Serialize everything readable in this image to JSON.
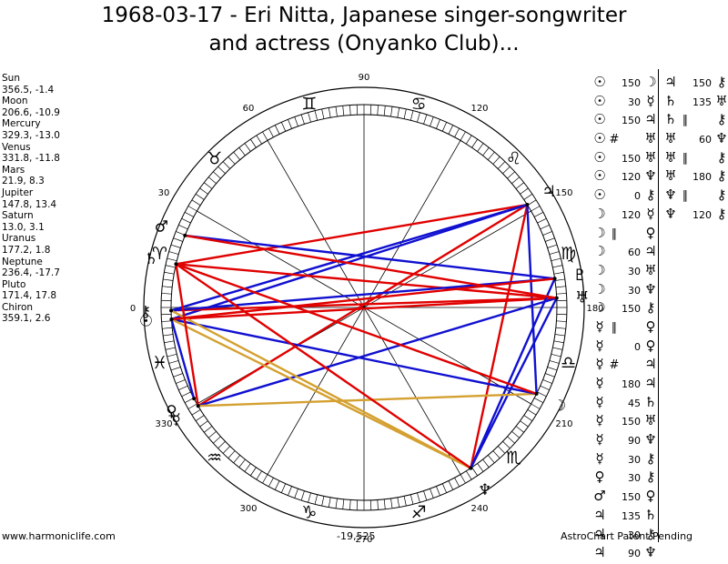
{
  "title": "1968-03-17 - Eri Nitta, Japanese singer-songwriter and actress (Onyanko Club)...",
  "planets": [
    {
      "name": "Sun",
      "coords": "356.5, -1.4",
      "lon": 356.5,
      "glyph": "☉"
    },
    {
      "name": "Moon",
      "coords": "206.6, -10.9",
      "lon": 206.6,
      "glyph": "☽"
    },
    {
      "name": "Mercury",
      "coords": "329.3, -13.0",
      "lon": 329.3,
      "glyph": "☿"
    },
    {
      "name": "Venus",
      "coords": "331.8, -11.8",
      "lon": 331.8,
      "glyph": "♀"
    },
    {
      "name": "Mars",
      "coords": "21.9, 8.3",
      "lon": 21.9,
      "glyph": "♂"
    },
    {
      "name": "Jupiter",
      "coords": "147.8, 13.4",
      "lon": 147.8,
      "glyph": "♃"
    },
    {
      "name": "Saturn",
      "coords": "13.0, 3.1",
      "lon": 13.0,
      "glyph": "♄"
    },
    {
      "name": "Uranus",
      "coords": "177.2, 1.8",
      "lon": 177.2,
      "glyph": "♅"
    },
    {
      "name": "Neptune",
      "coords": "236.4, -17.7",
      "lon": 236.4,
      "glyph": "♆"
    },
    {
      "name": "Pluto",
      "coords": "171.4, 17.8",
      "lon": 171.4,
      "glyph": "♇"
    },
    {
      "name": "Chiron",
      "coords": "359.1, 2.6",
      "lon": 359.1,
      "glyph": "⚷"
    }
  ],
  "wheel": {
    "degree_labels": [
      "90",
      "120",
      "150",
      "180",
      "210",
      "240",
      "270",
      "300",
      "330",
      "0",
      "30",
      "60"
    ],
    "degree_values": [
      90,
      120,
      150,
      180,
      210,
      240,
      270,
      300,
      330,
      0,
      30,
      60
    ],
    "signs": [
      "♈",
      "♉",
      "♊",
      "♋",
      "♌",
      "♍",
      "♎",
      "♏",
      "♐",
      "♑",
      "♒",
      "♓"
    ],
    "colors": {
      "hard": "#e00000",
      "soft": "#1010d0",
      "minor": "#d4a030"
    }
  },
  "aspect_lines": [
    {
      "from": "Jupiter",
      "to": "Mercury",
      "color": "hard"
    },
    {
      "from": "Jupiter",
      "to": "Neptune",
      "color": "hard"
    },
    {
      "from": "Jupiter",
      "to": "Moon",
      "color": "soft"
    },
    {
      "from": "Jupiter",
      "to": "Saturn",
      "color": "hard"
    },
    {
      "from": "Jupiter",
      "to": "Sun",
      "color": "soft"
    },
    {
      "from": "Jupiter",
      "to": "Chiron",
      "color": "soft"
    },
    {
      "from": "Uranus",
      "to": "Sun",
      "color": "hard"
    },
    {
      "from": "Uranus",
      "to": "Chiron",
      "color": "hard"
    },
    {
      "from": "Uranus",
      "to": "Neptune",
      "color": "soft"
    },
    {
      "from": "Uranus",
      "to": "Mercury",
      "color": "soft"
    },
    {
      "from": "Uranus",
      "to": "Saturn",
      "color": "hard"
    },
    {
      "from": "Pluto",
      "to": "Mars",
      "color": "soft"
    },
    {
      "from": "Pluto",
      "to": "Chiron",
      "color": "soft"
    },
    {
      "from": "Pluto",
      "to": "Neptune",
      "color": "soft"
    },
    {
      "from": "Moon",
      "to": "Mercury",
      "color": "minor"
    },
    {
      "from": "Moon",
      "to": "Sun",
      "color": "soft"
    },
    {
      "from": "Moon",
      "to": "Saturn",
      "color": "hard"
    },
    {
      "from": "Neptune",
      "to": "Sun",
      "color": "minor"
    },
    {
      "from": "Neptune",
      "to": "Chiron",
      "color": "minor"
    },
    {
      "from": "Neptune",
      "to": "Saturn",
      "color": "hard"
    },
    {
      "from": "Mercury",
      "to": "Saturn",
      "color": "hard"
    },
    {
      "from": "Sun",
      "to": "Pluto",
      "color": "hard"
    },
    {
      "from": "Mars",
      "to": "Uranus",
      "color": "hard"
    },
    {
      "from": "Venus",
      "to": "Sun",
      "color": "soft"
    }
  ],
  "aspects_col1": [
    {
      "p1": "☉",
      "asp": "",
      "val": "150",
      "p2": "☽"
    },
    {
      "p1": "☉",
      "asp": "",
      "val": "30",
      "p2": "☿"
    },
    {
      "p1": "☉",
      "asp": "",
      "val": "150",
      "p2": "♃"
    },
    {
      "p1": "☉",
      "asp": "#",
      "val": "",
      "p2": "♅"
    },
    {
      "p1": "☉",
      "asp": "",
      "val": "150",
      "p2": "♅"
    },
    {
      "p1": "☉",
      "asp": "",
      "val": "120",
      "p2": "♆"
    },
    {
      "p1": "☉",
      "asp": "",
      "val": "0",
      "p2": "⚷"
    },
    {
      "p1": "☽",
      "asp": "",
      "val": "120",
      "p2": "☿"
    },
    {
      "p1": "☽",
      "asp": "∥",
      "val": "",
      "p2": "♀"
    },
    {
      "p1": "☽",
      "asp": "",
      "val": "60",
      "p2": "♃"
    },
    {
      "p1": "☽",
      "asp": "",
      "val": "30",
      "p2": "♅"
    },
    {
      "p1": "☽",
      "asp": "",
      "val": "30",
      "p2": "♆"
    },
    {
      "p1": "☽",
      "asp": "",
      "val": "150",
      "p2": "⚷"
    },
    {
      "p1": "☿",
      "asp": "∥",
      "val": "",
      "p2": "♀"
    },
    {
      "p1": "☿",
      "asp": "",
      "val": "0",
      "p2": "♀"
    },
    {
      "p1": "☿",
      "asp": "#",
      "val": "",
      "p2": "♃"
    },
    {
      "p1": "☿",
      "asp": "",
      "val": "180",
      "p2": "♃"
    },
    {
      "p1": "☿",
      "asp": "",
      "val": "45",
      "p2": "♄"
    },
    {
      "p1": "☿",
      "asp": "",
      "val": "150",
      "p2": "♅"
    },
    {
      "p1": "☿",
      "asp": "",
      "val": "90",
      "p2": "♆"
    },
    {
      "p1": "☿",
      "asp": "",
      "val": "30",
      "p2": "⚷"
    },
    {
      "p1": "♀",
      "asp": "",
      "val": "30",
      "p2": "⚷"
    },
    {
      "p1": "♂",
      "asp": "",
      "val": "150",
      "p2": "♀"
    },
    {
      "p1": "♃",
      "asp": "",
      "val": "135",
      "p2": "♄"
    },
    {
      "p1": "♃",
      "asp": "",
      "val": "30",
      "p2": "⚷"
    },
    {
      "p1": "♃",
      "asp": "",
      "val": "90",
      "p2": "♆"
    }
  ],
  "aspects_col2": [
    {
      "p1": "♃",
      "asp": "",
      "val": "150",
      "p2": "⚷"
    },
    {
      "p1": "♄",
      "asp": "",
      "val": "135",
      "p2": "♅"
    },
    {
      "p1": "♄",
      "asp": "∥",
      "val": "",
      "p2": "⚷"
    },
    {
      "p1": "♅",
      "asp": "",
      "val": "60",
      "p2": "♆"
    },
    {
      "p1": "♅",
      "asp": "∥",
      "val": "",
      "p2": "⚷"
    },
    {
      "p1": "♅",
      "asp": "",
      "val": "180",
      "p2": "⚷"
    },
    {
      "p1": "♆",
      "asp": "∥",
      "val": "",
      "p2": "⚷"
    },
    {
      "p1": "♆",
      "asp": "",
      "val": "120",
      "p2": "⚷"
    }
  ],
  "footer": {
    "left": "www.harmoniclife.com",
    "center": "-19,525",
    "right": "AstroChart Patent Pending"
  }
}
